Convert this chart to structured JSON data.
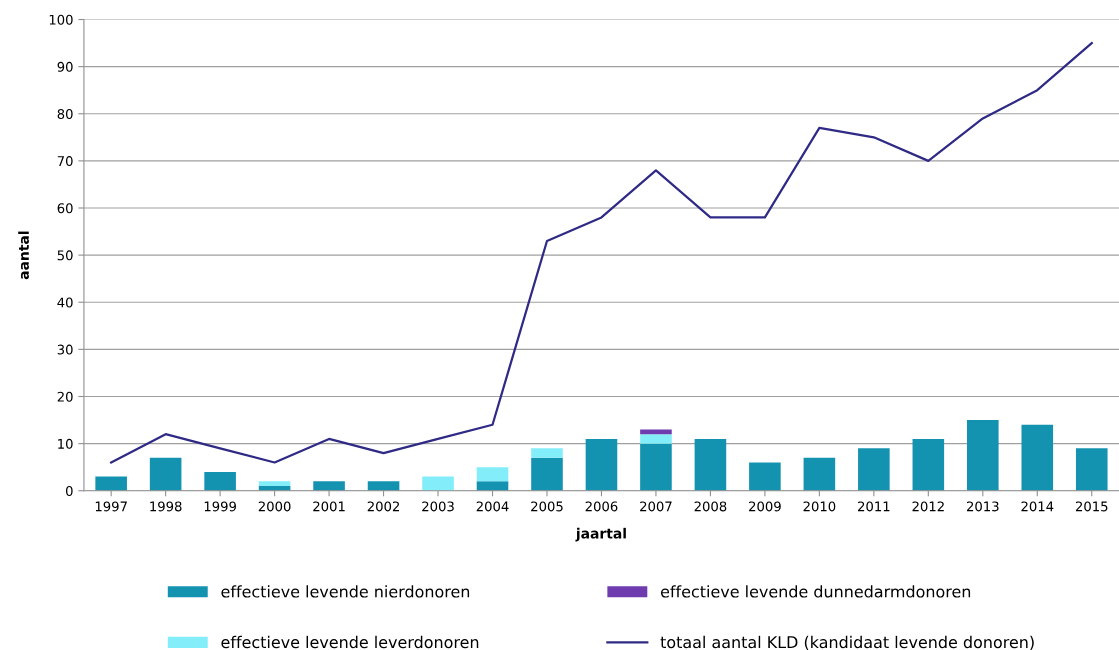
{
  "chart_data": {
    "type": "bar",
    "stacked": true,
    "xlabel": "jaartal",
    "ylabel": "aantal",
    "categories": [
      "1997",
      "1998",
      "1999",
      "2000",
      "2001",
      "2002",
      "2003",
      "2004",
      "2005",
      "2006",
      "2007",
      "2008",
      "2009",
      "2010",
      "2011",
      "2012",
      "2013",
      "2014",
      "2015"
    ],
    "series": [
      {
        "name": "effectieve levende nierdonoren",
        "color": "#1493b1",
        "values": [
          3,
          7,
          4,
          1,
          2,
          2,
          null,
          2,
          7,
          11,
          10,
          11,
          6,
          7,
          9,
          11,
          15,
          14,
          9
        ]
      },
      {
        "name": "effectieve levende leverdonoren",
        "color": "#83eef9",
        "values": [
          null,
          null,
          null,
          1,
          null,
          null,
          3,
          3,
          2,
          null,
          2,
          null,
          null,
          null,
          null,
          null,
          null,
          null,
          null
        ]
      },
      {
        "name": "effectieve levende dunnedarmdonoren",
        "color": "#6f3cb0",
        "values": [
          null,
          null,
          null,
          null,
          null,
          null,
          null,
          null,
          null,
          null,
          1,
          null,
          null,
          null,
          null,
          null,
          null,
          null,
          null
        ]
      },
      {
        "name": "totaal aantal KLD (kandidaat levende donoren)",
        "type": "line",
        "color": "#2e2a85",
        "values": [
          6,
          12,
          9,
          6,
          11,
          8,
          11,
          14,
          53,
          58,
          68,
          58,
          58,
          77,
          75,
          70,
          79,
          85,
          95
        ]
      }
    ],
    "ylim": [
      0,
      100
    ],
    "yticks": [
      0,
      10,
      20,
      30,
      40,
      50,
      60,
      70,
      80,
      90,
      100
    ],
    "grid": "y",
    "legend": "bottom"
  }
}
